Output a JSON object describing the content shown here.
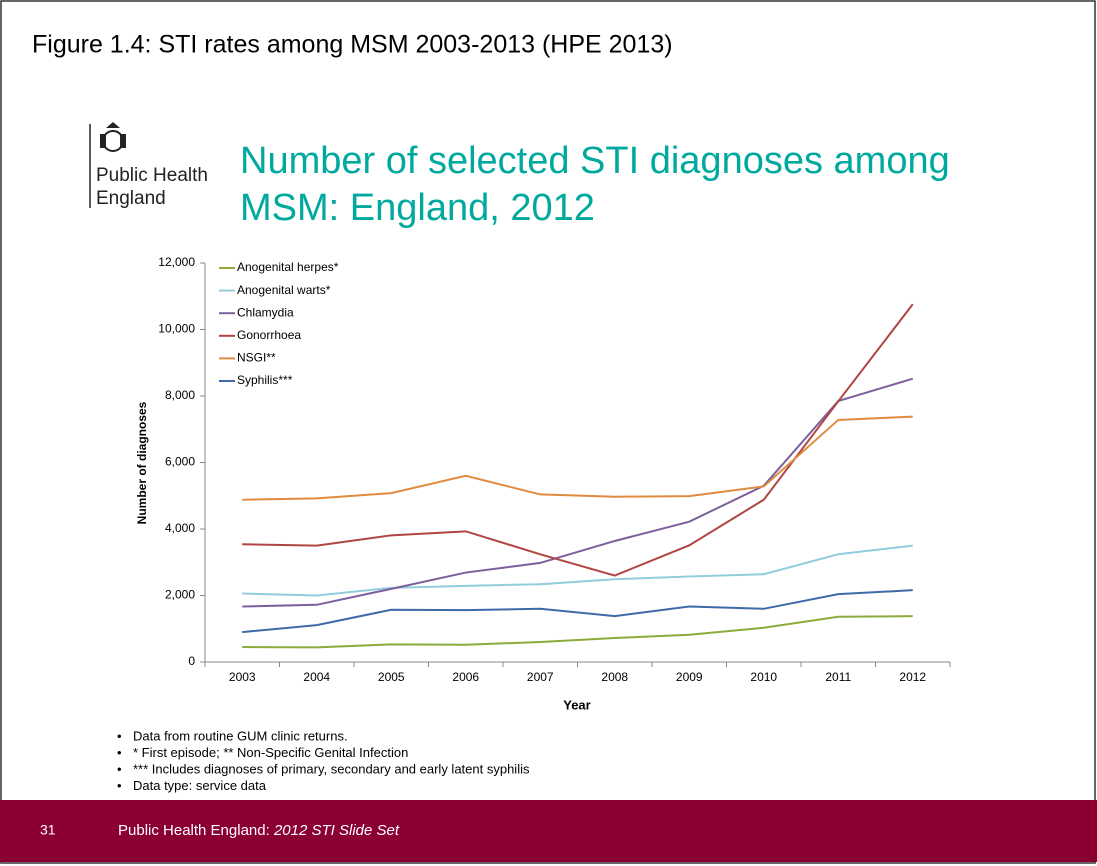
{
  "figure_title": "Figure 1.4:  STI rates among MSM 2003-2013 (HPE 2013)",
  "logo": {
    "line1": "Public Health",
    "line2": "England"
  },
  "chart_data": {
    "type": "line",
    "title": [
      "Number of selected STI diagnoses among",
      "MSM: England, 2012"
    ],
    "x_label": "Year",
    "y_label": "Number of diagnoses",
    "categories": [
      "2003",
      "2004",
      "2005",
      "2006",
      "2007",
      "2008",
      "2009",
      "2010",
      "2011",
      "2012"
    ],
    "ylim": [
      0,
      12000
    ],
    "yticks": [
      0,
      {
        "value": 2000,
        "label": "2,000"
      },
      {
        "value": 4000,
        "label": "4,000"
      },
      {
        "value": 6000,
        "label": "6,000"
      },
      {
        "value": 8000,
        "label": "8,000"
      },
      {
        "value": 10000,
        "label": "10,000"
      },
      {
        "value": 12000,
        "label": "12,000"
      }
    ],
    "legend": "top-left",
    "series": [
      {
        "name": "Anogenital herpes*",
        "color": "#8cab3c",
        "values": [
          450,
          440,
          530,
          520,
          600,
          720,
          820,
          1030,
          1360,
          1380
        ]
      },
      {
        "name": "Anogenital warts*",
        "color": "#93cddd",
        "values": [
          2060,
          2000,
          2230,
          2290,
          2340,
          2490,
          2570,
          2640,
          3240,
          3500
        ]
      },
      {
        "name": "Chlamydia",
        "color": "#7d5f9e",
        "values": [
          1670,
          1720,
          2200,
          2690,
          2980,
          3640,
          4220,
          5300,
          7850,
          8520
        ]
      },
      {
        "name": "Gonorrhoea",
        "color": "#b04541",
        "values": [
          3540,
          3500,
          3810,
          3930,
          3240,
          2600,
          3510,
          4880,
          7840,
          10760
        ]
      },
      {
        "name": "NSGI**",
        "color": "#e08b3d",
        "values": [
          4880,
          4920,
          5080,
          5600,
          5040,
          4970,
          4990,
          5280,
          7280,
          7380
        ]
      },
      {
        "name": "Syphilis***",
        "color": "#3f6aa8",
        "values": [
          900,
          1110,
          1570,
          1560,
          1600,
          1380,
          1670,
          1600,
          2040,
          2160
        ]
      }
    ]
  },
  "notes": [
    "Data from routine GUM clinic returns.",
    "* First episode; ** Non-Specific Genital Infection",
    "*** Includes diagnoses of primary, secondary and early latent syphilis",
    "Data type: service data"
  ],
  "footer": {
    "number": "31",
    "text": "Public Health England: ",
    "italic": "2012 STI Slide Set"
  }
}
